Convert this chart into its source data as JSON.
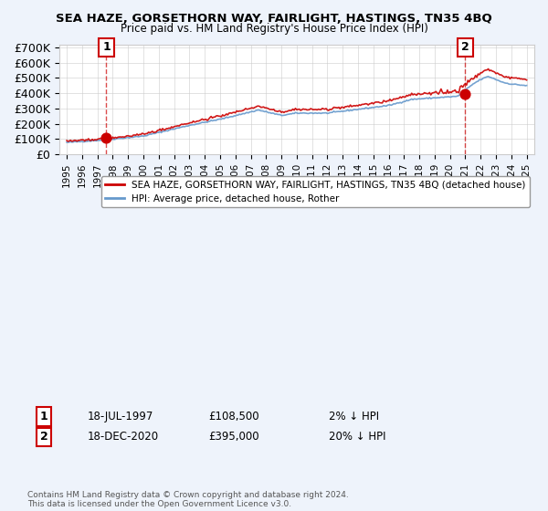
{
  "title": "SEA HAZE, GORSETHORN WAY, FAIRLIGHT, HASTINGS, TN35 4BQ",
  "subtitle": "Price paid vs. HM Land Registry's House Price Index (HPI)",
  "ylabel": "",
  "ylim": [
    0,
    720000
  ],
  "yticks": [
    0,
    100000,
    200000,
    300000,
    400000,
    500000,
    600000,
    700000
  ],
  "ytick_labels": [
    "£0",
    "£100K",
    "£200K",
    "£300K",
    "£400K",
    "£500K",
    "£600K",
    "£700K"
  ],
  "purchase1": {
    "date_idx": 2.5,
    "price": 108500,
    "label": "1",
    "year": "1997"
  },
  "purchase2": {
    "date_idx": 25.9,
    "price": 395000,
    "label": "2",
    "year": "2020"
  },
  "legend_line1": "SEA HAZE, GORSETHORN WAY, FAIRLIGHT, HASTINGS, TN35 4BQ (detached house)",
  "legend_line2": "HPI: Average price, detached house, Rother",
  "annotation1_date": "18-JUL-1997",
  "annotation1_price": "£108,500",
  "annotation1_hpi": "2% ↓ HPI",
  "annotation2_date": "18-DEC-2020",
  "annotation2_price": "£395,000",
  "annotation2_hpi": "20% ↓ HPI",
  "footer": "Contains HM Land Registry data © Crown copyright and database right 2024.\nThis data is licensed under the Open Government Licence v3.0.",
  "bg_color": "#eef3fb",
  "plot_bg": "#ffffff",
  "grid_color": "#cccccc",
  "red_line_color": "#cc0000",
  "blue_line_color": "#6699cc"
}
